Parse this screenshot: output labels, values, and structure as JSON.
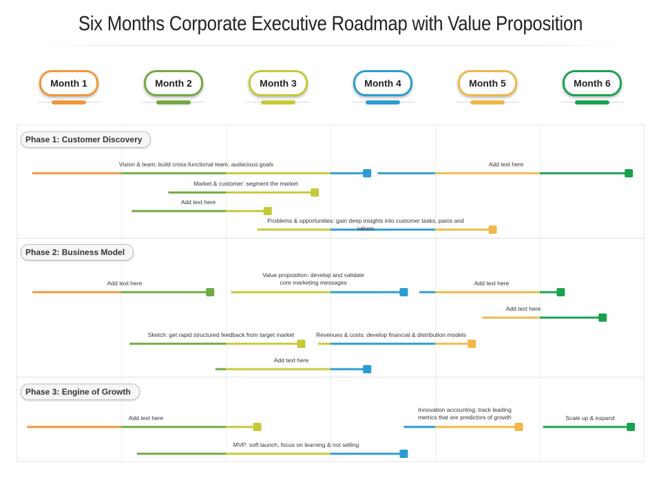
{
  "title": "Six Months Corporate Executive Roadmap with Value Proposition",
  "months": [
    {
      "label": "Month 1",
      "color": "#f0963c"
    },
    {
      "label": "Month 2",
      "color": "#72a842"
    },
    {
      "label": "Month 3",
      "color": "#c5c93a"
    },
    {
      "label": "Month 4",
      "color": "#2b9bd1"
    },
    {
      "label": "Month 5",
      "color": "#efb849"
    },
    {
      "label": "Month 6",
      "color": "#1aa150"
    }
  ],
  "phases": [
    {
      "label": "Phase 1: Customer Discovery",
      "tasks": [
        {
          "label": "Vision & team: build cross-functional team, audacious goals",
          "start": 0.15,
          "end": 3.35
        },
        {
          "label": "Add text here",
          "start": 3.45,
          "end": 5.85
        },
        {
          "label": "Market & customer: segment the market",
          "start": 1.45,
          "end": 2.85
        },
        {
          "label": "Add text here",
          "start": 1.1,
          "end": 2.4
        },
        {
          "label": "Problems & opportunities: gain deep insights into customer tasks, pains and values",
          "start": 2.3,
          "end": 4.55
        }
      ]
    },
    {
      "label": "Phase 2: Business Model",
      "tasks": [
        {
          "label": "Add text here",
          "start": 0.15,
          "end": 1.85
        },
        {
          "label": "Value proposition: develop and validate\ncore marketing messages",
          "start": 2.05,
          "end": 3.7
        },
        {
          "label": "Add text here",
          "start": 3.85,
          "end": 5.2
        },
        {
          "label": "Add text here",
          "start": 4.45,
          "end": 5.6
        },
        {
          "label": "Sketch: get rapid structured feedback from target market",
          "start": 1.08,
          "end": 2.72
        },
        {
          "label": "Revenues & costs: develop financial & distribution models",
          "start": 2.88,
          "end": 4.35
        },
        {
          "label": "Add text here",
          "start": 1.9,
          "end": 3.35
        }
      ]
    },
    {
      "label": "Phase 3: Engine of Growth",
      "tasks": [
        {
          "label": "Add text here",
          "start": 0.1,
          "end": 2.3
        },
        {
          "label": "Innovation accounting: track leading\nmetrics that are predictors of growth",
          "start": 3.7,
          "end": 4.8
        },
        {
          "label": "Scale up & expand",
          "start": 5.03,
          "end": 5.87
        },
        {
          "label": "MVP: soft launch, focus on learning & not selling",
          "start": 1.15,
          "end": 3.7
        }
      ]
    }
  ]
}
